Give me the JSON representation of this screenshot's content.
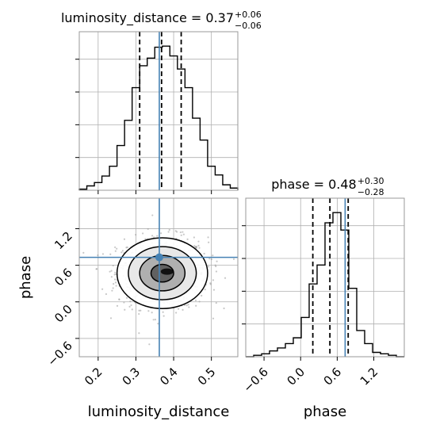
{
  "chart_data": {
    "type": "corner",
    "parameters": [
      "luminosity_distance",
      "phase"
    ],
    "panels": [
      {
        "name": "luminosity_distance-1d",
        "type": "histogram",
        "title": {
          "text": "luminosity_distance = 0.37",
          "plus": "+0.06",
          "minus": "−0.06"
        },
        "xlim": [
          0.15,
          0.57
        ],
        "bin_edges": [
          0.15,
          0.17,
          0.19,
          0.21,
          0.23,
          0.25,
          0.27,
          0.29,
          0.31,
          0.33,
          0.35,
          0.37,
          0.39,
          0.41,
          0.43,
          0.45,
          0.47,
          0.49,
          0.51,
          0.53,
          0.55,
          0.57
        ],
        "counts": [
          0.01,
          0.04,
          0.07,
          0.13,
          0.22,
          0.41,
          0.64,
          0.94,
          1.14,
          1.21,
          1.31,
          1.32,
          1.23,
          1.11,
          0.94,
          0.66,
          0.46,
          0.22,
          0.14,
          0.05,
          0.02
        ],
        "quantiles": [
          0.31,
          0.368,
          0.42
        ],
        "truth": 0.362
      },
      {
        "name": "phase-1d",
        "type": "histogram",
        "title": {
          "text": "phase = 0.48",
          "plus": "+0.30",
          "minus": "−0.28"
        },
        "xlim": [
          -0.9,
          1.7
        ],
        "bin_edges": [
          -0.9,
          -0.77,
          -0.64,
          -0.51,
          -0.38,
          -0.25,
          -0.12,
          0.01,
          0.14,
          0.27,
          0.4,
          0.53,
          0.66,
          0.79,
          0.92,
          1.05,
          1.18,
          1.31,
          1.44,
          1.57,
          1.7
        ],
        "counts": [
          0.0,
          0.01,
          0.02,
          0.04,
          0.06,
          0.09,
          0.13,
          0.27,
          0.5,
          0.63,
          0.92,
          0.99,
          0.87,
          0.47,
          0.18,
          0.09,
          0.03,
          0.02,
          0.01,
          0.0
        ],
        "quantiles": [
          0.2,
          0.48,
          0.78
        ],
        "truth": 0.73
      },
      {
        "name": "joint-2d",
        "type": "density",
        "xlim": [
          0.15,
          0.57
        ],
        "ylim": [
          -0.9,
          1.7
        ],
        "center": {
          "x": 0.37,
          "y": 0.47
        },
        "sigma": {
          "x": 0.06,
          "y": 0.29
        },
        "contour_sigma_levels": [
          0.5,
          1.0,
          1.5,
          2.0
        ],
        "truth": {
          "x": 0.362,
          "y": 0.73
        },
        "scatter_points": 900
      }
    ],
    "x_ticks": {
      "luminosity_distance": [
        "0.2",
        "0.3",
        "0.4",
        "0.5"
      ],
      "phase": [
        "−0.6",
        "0.0",
        "0.6",
        "1.2"
      ]
    },
    "y_ticks": {
      "phase": [
        "−0.6",
        "0.0",
        "0.6",
        "1.2"
      ]
    },
    "xlabels": [
      "luminosity_distance",
      "phase"
    ],
    "ylabels": [
      "phase"
    ],
    "grid": true,
    "colors": {
      "truth": "#4682b4",
      "hist": "#000000",
      "grid": "#b0b0b0",
      "quantile": "#000000"
    }
  }
}
